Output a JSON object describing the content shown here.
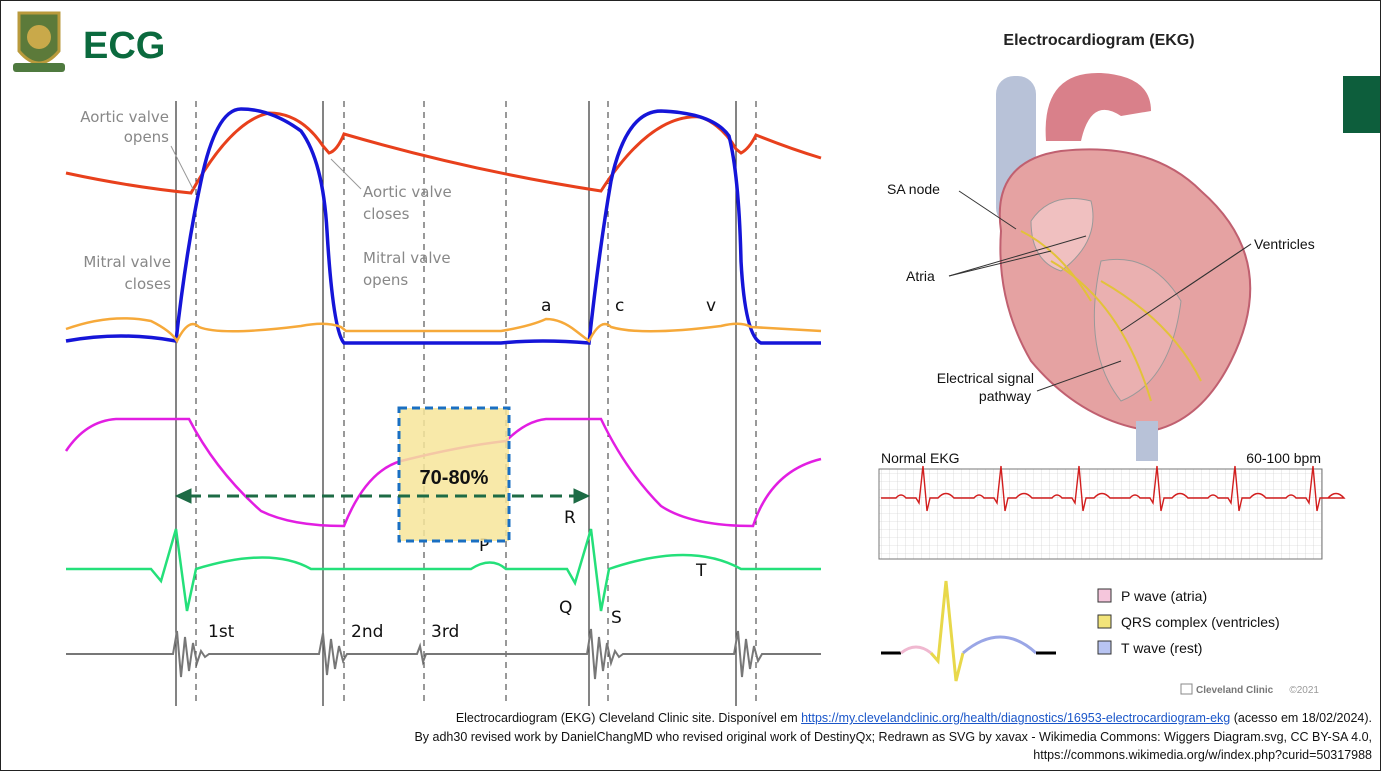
{
  "header": {
    "title": "ECG"
  },
  "wiggers": {
    "labels": {
      "aortic_opens": [
        "Aortic valve",
        "opens"
      ],
      "aortic_closes": [
        "Aortic valve",
        "closes"
      ],
      "mitral_closes": [
        "Mitral valve",
        "closes"
      ],
      "mitral_opens": [
        "Mitral valve",
        "opens"
      ],
      "a": "a",
      "c": "c",
      "v": "v",
      "r": "R",
      "p": "P",
      "q": "Q",
      "s": "S",
      "t": "T",
      "s1": "1st",
      "s2": "2nd",
      "s3": "3rd"
    },
    "highlight": "70-80%"
  },
  "heart": {
    "title": "Electrocardiogram (EKG)",
    "labels": {
      "sa_node": "SA node",
      "atria": "Atria",
      "ventricles": "Ventricles",
      "pathway": [
        "Electrical signal",
        "pathway"
      ]
    },
    "ekg_title": "Normal EKG",
    "ekg_rate": "60-100 bpm",
    "legend": [
      "P wave (atria)",
      "QRS complex (ventricles)",
      "T wave (rest)"
    ],
    "credit": "Cleveland Clinic",
    "year": "©2021"
  },
  "footer": {
    "line1": {
      "before": "Electrocardiogram (EKG) Cleveland Clinic site. Disponível em ",
      "link": "https://my.clevelandclinic.org/health/diagnostics/16953-electrocardiogram-ekg",
      "after": " (acesso em 18/02/2024)."
    },
    "line2": "By adh30 revised work by DanielChangMD who revised original work of DestinyQx; Redrawn as SVG by xavax - Wikimedia Commons: Wiggers Diagram.svg, CC BY-SA 4.0,",
    "line3": "https://commons.wikimedia.org/w/index.php?curid=50317988"
  }
}
